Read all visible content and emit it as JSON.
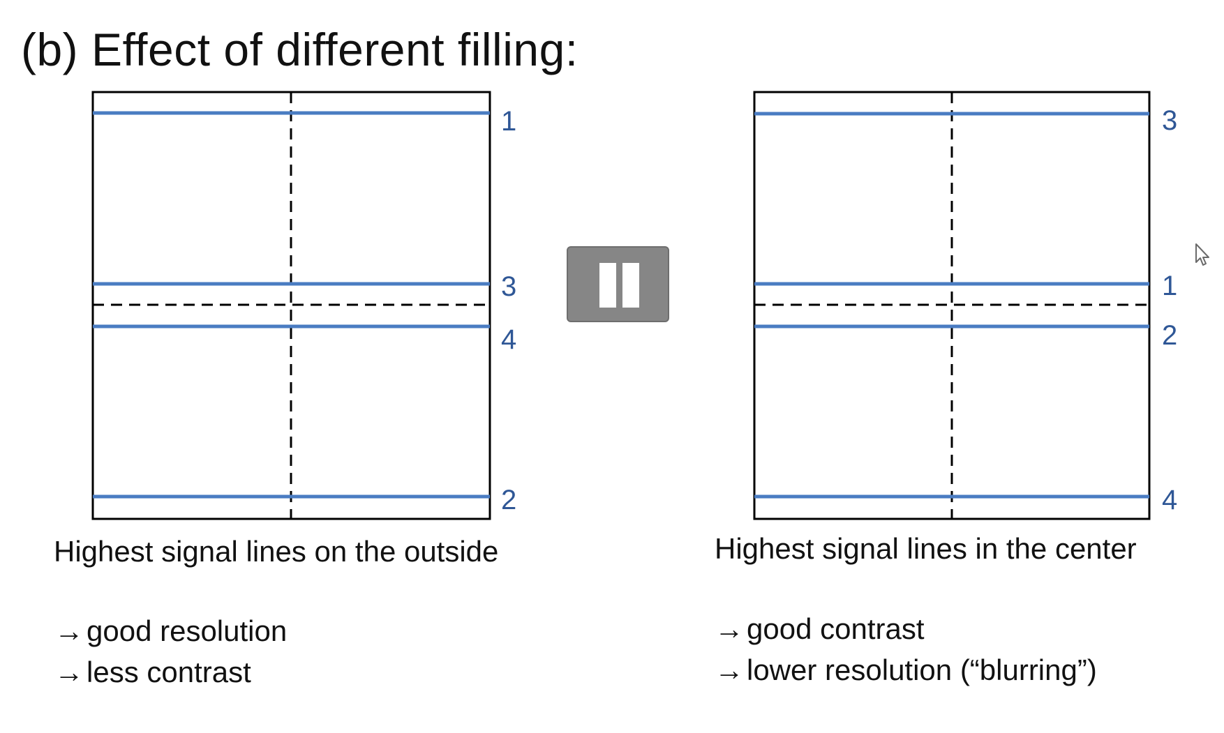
{
  "title": "(b) Effect of different filling:",
  "colors": {
    "signal_line": "#4a7cc2",
    "label": "#2f5796",
    "frame": "#000000",
    "pause_bg": "#868686"
  },
  "panels": [
    {
      "id": "left",
      "line_labels": {
        "top": "1",
        "mid_upper": "3",
        "mid_lower": "4",
        "bottom": "2"
      },
      "caption": "Highest signal lines on the outside",
      "points": [
        "good resolution",
        "less contrast"
      ]
    },
    {
      "id": "right",
      "line_labels": {
        "top": "3",
        "mid_upper": "1",
        "mid_lower": "2",
        "bottom": "4"
      },
      "caption": "Highest signal lines in the center",
      "points": [
        "good contrast",
        "lower resolution (“blurring”)"
      ]
    }
  ],
  "arrow_symbol": "→",
  "icons": {
    "pause": "pause-icon",
    "cursor": "mouse-pointer-icon"
  }
}
